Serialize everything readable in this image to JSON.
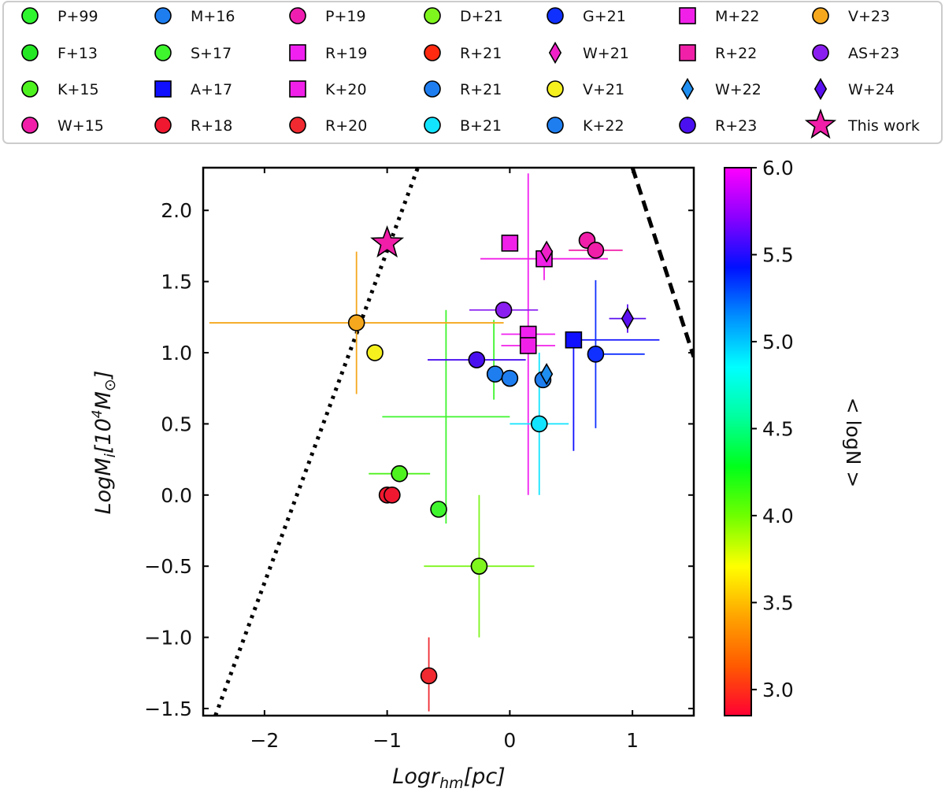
{
  "chart_data": {
    "type": "scatter",
    "xlabel": "Logr_hm[pc]",
    "ylabel": "LogM_i[10^4 M_sun]",
    "xlim": [
      -2.5,
      1.5
    ],
    "ylim": [
      -1.55,
      2.3
    ],
    "xticks": [
      -2,
      -1,
      0,
      1
    ],
    "xtick_labels": [
      "−2",
      "−1",
      "0",
      "1"
    ],
    "yticks": [
      -1.5,
      -1.0,
      -0.5,
      0.0,
      0.5,
      1.0,
      1.5,
      2.0
    ],
    "ytick_labels": [
      "−1.5",
      "−1.0",
      "−0.5",
      "0.0",
      "0.5",
      "1.0",
      "1.5",
      "2.0"
    ],
    "colorbar": {
      "label": "< logN >",
      "range": [
        2.85,
        6.0
      ],
      "ticks": [
        3.0,
        3.5,
        4.0,
        4.5,
        5.0,
        5.5,
        6.0
      ],
      "tick_labels": [
        "3.0",
        "3.5",
        "4.0",
        "4.5",
        "5.0",
        "5.5",
        "6.0"
      ],
      "colormap": "gist_rainbow_r",
      "stops": [
        "#ff0033",
        "#ff5a00",
        "#ffa500",
        "#ffff00",
        "#70ff00",
        "#00ff1a",
        "#00ff9e",
        "#00ffff",
        "#0090ff",
        "#0010ff",
        "#8a00ff",
        "#ff00ff"
      ]
    },
    "lines": [
      {
        "name": "dotted-limit",
        "style": "dotted",
        "x": [
          -2.4,
          -0.75
        ],
        "y": [
          -1.55,
          2.3
        ]
      },
      {
        "name": "dashed-limit",
        "style": "dashed",
        "x": [
          1.0,
          1.5
        ],
        "y": [
          2.3,
          0.97
        ]
      }
    ],
    "series": [
      {
        "name": "P+99",
        "marker": "circle",
        "color": "#2ef52e",
        "points": []
      },
      {
        "name": "F+13",
        "marker": "circle",
        "color": "#25e825",
        "points": []
      },
      {
        "name": "K+15",
        "marker": "circle",
        "color": "#4ef21e",
        "points": [
          {
            "x": -0.9,
            "y": 0.15,
            "xerr": [
              0.25,
              0.25
            ],
            "yerr": [
              0,
              0
            ]
          }
        ]
      },
      {
        "name": "W+15",
        "marker": "circle",
        "color": "#f01ea8",
        "points": [
          {
            "x": 0.63,
            "y": 1.79,
            "xerr": [
              0,
              0
            ],
            "yerr": [
              0,
              0
            ]
          },
          {
            "x": 0.7,
            "y": 1.72,
            "xerr": [
              0.22,
              0.22
            ],
            "yerr": [
              0,
              0
            ]
          }
        ]
      },
      {
        "name": "M+16",
        "marker": "circle",
        "color": "#1e7ef0",
        "points": [
          {
            "x": -0.12,
            "y": 0.85,
            "xerr": [
              0,
              0
            ],
            "yerr": [
              0,
              0
            ]
          },
          {
            "x": 0.0,
            "y": 0.82,
            "xerr": [
              0,
              0
            ],
            "yerr": [
              0,
              0
            ]
          }
        ]
      },
      {
        "name": "S+17",
        "marker": "circle",
        "color": "#3ff52e",
        "points": [
          {
            "x": -0.58,
            "y": -0.1,
            "xerr": [
              0,
              0
            ],
            "yerr": [
              0,
              0
            ]
          }
        ]
      },
      {
        "name": "A+17",
        "marker": "square",
        "color": "#1010ff",
        "points": [
          {
            "x": 0.52,
            "y": 1.09,
            "xerr": [
              0.0,
              0.7
            ],
            "yerr": [
              0.78,
              0.0
            ]
          }
        ]
      },
      {
        "name": "R+18",
        "marker": "circle",
        "color": "#f01830",
        "points": [
          {
            "x": -1.0,
            "y": 0.0,
            "xerr": [
              0,
              0
            ],
            "yerr": [
              0,
              0
            ]
          },
          {
            "x": -0.96,
            "y": 0.0,
            "xerr": [
              0,
              0
            ],
            "yerr": [
              0,
              0
            ]
          }
        ]
      },
      {
        "name": "P+19",
        "marker": "circle",
        "color": "#f01eb0",
        "points": []
      },
      {
        "name": "R+19",
        "marker": "square",
        "color": "#f020f0",
        "points": [
          {
            "x": 0.15,
            "y": 1.13,
            "xerr": [
              0.22,
              0.22
            ],
            "yerr": [
              0,
              0
            ]
          }
        ]
      },
      {
        "name": "K+20",
        "marker": "square",
        "color": "#f020e8",
        "points": [
          {
            "x": 0.15,
            "y": 1.05,
            "xerr": [
              0.22,
              0.22
            ],
            "yerr": [
              0,
              0
            ]
          },
          {
            "x": 0.28,
            "y": 1.66,
            "xerr": [
              0.52,
              0.52
            ],
            "yerr": [
              0.15,
              0.0
            ]
          }
        ]
      },
      {
        "name": "R+20",
        "marker": "circle",
        "color": "#f02a30",
        "points": [
          {
            "x": -0.66,
            "y": -1.27,
            "xerr": [
              0,
              0
            ],
            "yerr": [
              0.25,
              0.27
            ]
          }
        ]
      },
      {
        "name": "D+21",
        "marker": "circle",
        "color": "#7ff51e",
        "points": [
          {
            "x": -0.25,
            "y": -0.5,
            "xerr": [
              0.45,
              0.45
            ],
            "yerr": [
              0.5,
              0.5
            ]
          }
        ]
      },
      {
        "name": "R+21",
        "marker": "circle",
        "color": "#ff2a10",
        "points": []
      },
      {
        "name": "R+21",
        "marker": "circle",
        "color": "#1e7ef0",
        "points": []
      },
      {
        "name": "B+21",
        "marker": "circle",
        "color": "#12e4ff",
        "points": [
          {
            "x": 0.24,
            "y": 0.5,
            "xerr": [
              0.24,
              0.24
            ],
            "yerr": [
              0.5,
              0.5
            ]
          }
        ]
      },
      {
        "name": "G+21",
        "marker": "circle",
        "color": "#1030ff",
        "points": [
          {
            "x": 0.7,
            "y": 0.99,
            "xerr": [
              0.0,
              0.4
            ],
            "yerr": [
              0.52,
              0.52
            ]
          }
        ]
      },
      {
        "name": "W+21",
        "marker": "diamond",
        "color": "#f020c8",
        "points": [
          {
            "x": 0.3,
            "y": 1.71,
            "xerr": [
              0,
              0
            ],
            "yerr": [
              0,
              0
            ]
          }
        ]
      },
      {
        "name": "V+21",
        "marker": "circle",
        "color": "#f5f01e",
        "points": [
          {
            "x": -1.1,
            "y": 1.0,
            "xerr": [
              0,
              0
            ],
            "yerr": [
              0,
              0
            ]
          }
        ]
      },
      {
        "name": "K+22",
        "marker": "circle",
        "color": "#1e7ef0",
        "points": [
          {
            "x": 0.27,
            "y": 0.81,
            "xerr": [
              0,
              0
            ],
            "yerr": [
              0,
              0
            ]
          }
        ]
      },
      {
        "name": "M+22",
        "marker": "square",
        "color": "#f020e8",
        "points": [
          {
            "x": 0.0,
            "y": 1.77,
            "xerr": [
              0,
              0
            ],
            "yerr": [
              0,
              0
            ]
          }
        ]
      },
      {
        "name": "R+22",
        "marker": "square",
        "color": "#f020a8",
        "points": []
      },
      {
        "name": "W+22",
        "marker": "diamond",
        "color": "#1e8ef0",
        "points": [
          {
            "x": 0.3,
            "y": 0.85,
            "xerr": [
              0,
              0
            ],
            "yerr": [
              0,
              0
            ]
          }
        ]
      },
      {
        "name": "R+23",
        "marker": "circle",
        "color": "#4a10f0",
        "points": [
          {
            "x": -0.27,
            "y": 0.95,
            "xerr": [
              0.4,
              0.4
            ],
            "yerr": [
              0,
              0
            ]
          }
        ]
      },
      {
        "name": "V+23",
        "marker": "circle",
        "color": "#f5a81e",
        "points": [
          {
            "x": -1.25,
            "y": 1.21,
            "xerr": [
              1.2,
              1.2
            ],
            "yerr": [
              0.5,
              0.5
            ]
          }
        ]
      },
      {
        "name": "AS+23",
        "marker": "circle",
        "color": "#8a1ef0",
        "points": [
          {
            "x": -0.05,
            "y": 1.3,
            "xerr": [
              0.28,
              0.28
            ],
            "yerr": [
              0,
              0
            ]
          }
        ]
      },
      {
        "name": "W+24",
        "marker": "diamond",
        "color": "#5a10f0",
        "points": [
          {
            "x": 0.96,
            "y": 1.24,
            "xerr": [
              0.15,
              0.15
            ],
            "yerr": [
              0.1,
              0.1
            ]
          }
        ]
      },
      {
        "name": "This work",
        "marker": "star",
        "color": "#f01ea8",
        "points": [
          {
            "x": -1.0,
            "y": 1.77,
            "xerr": [
              0,
              0
            ],
            "yerr": [
              0,
              0
            ]
          }
        ]
      }
    ],
    "extra_points": [
      {
        "color": "#3ff52e",
        "x": -0.52,
        "y": 0.55,
        "xerr": [
          0.52,
          0.52
        ],
        "yerr": [
          0.75,
          0.75
        ]
      },
      {
        "color": "#3ff52e",
        "x": -0.13,
        "y": 0.95,
        "xerr": [
          0,
          0
        ],
        "yerr": [
          0.28,
          0.28
        ]
      },
      {
        "color": "#f020f0",
        "x": 0.15,
        "y": 1.13,
        "xerr": [
          0,
          0
        ],
        "yerr": [
          1.13,
          1.13
        ]
      }
    ],
    "legend": {
      "placement": "top",
      "columns": 7,
      "entries": [
        {
          "label": "P+99",
          "marker": "circle",
          "color": "#2ef52e"
        },
        {
          "label": "F+13",
          "marker": "circle",
          "color": "#25e825"
        },
        {
          "label": "K+15",
          "marker": "circle",
          "color": "#4ef21e"
        },
        {
          "label": "W+15",
          "marker": "circle",
          "color": "#f01ea8"
        },
        {
          "label": "M+16",
          "marker": "circle",
          "color": "#1e7ef0"
        },
        {
          "label": "S+17",
          "marker": "circle",
          "color": "#3ff52e"
        },
        {
          "label": "A+17",
          "marker": "square",
          "color": "#1010ff"
        },
        {
          "label": "R+18",
          "marker": "circle",
          "color": "#f01830"
        },
        {
          "label": "P+19",
          "marker": "circle",
          "color": "#f01eb0"
        },
        {
          "label": "R+19",
          "marker": "square",
          "color": "#f020f0"
        },
        {
          "label": "K+20",
          "marker": "square",
          "color": "#f020e8"
        },
        {
          "label": "R+20",
          "marker": "circle",
          "color": "#f02a30"
        },
        {
          "label": "D+21",
          "marker": "circle",
          "color": "#7ff51e"
        },
        {
          "label": "R+21",
          "marker": "circle",
          "color": "#ff2a10"
        },
        {
          "label": "R+21",
          "marker": "circle",
          "color": "#1e7ef0"
        },
        {
          "label": "B+21",
          "marker": "circle",
          "color": "#12e4ff"
        },
        {
          "label": "G+21",
          "marker": "circle",
          "color": "#1030ff"
        },
        {
          "label": "W+21",
          "marker": "diamond",
          "color": "#f020c8"
        },
        {
          "label": "V+21",
          "marker": "circle",
          "color": "#f5f01e"
        },
        {
          "label": "K+22",
          "marker": "circle",
          "color": "#1e7ef0"
        },
        {
          "label": "M+22",
          "marker": "square",
          "color": "#f020e8"
        },
        {
          "label": "R+22",
          "marker": "square",
          "color": "#f020a8"
        },
        {
          "label": "W+22",
          "marker": "diamond",
          "color": "#1e8ef0"
        },
        {
          "label": "R+23",
          "marker": "circle",
          "color": "#4a10f0"
        },
        {
          "label": "V+23",
          "marker": "circle",
          "color": "#f5a81e"
        },
        {
          "label": "AS+23",
          "marker": "circle",
          "color": "#8a1ef0"
        },
        {
          "label": "W+24",
          "marker": "diamond",
          "color": "#5a10f0"
        },
        {
          "label": "This work",
          "marker": "star",
          "color": "#f01ea8"
        }
      ]
    }
  }
}
